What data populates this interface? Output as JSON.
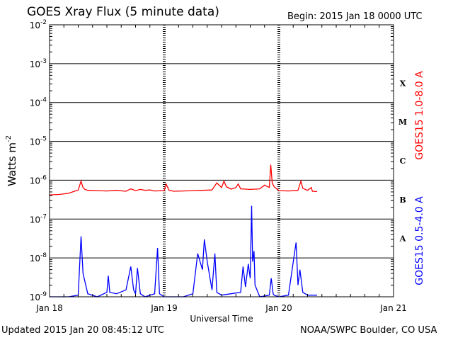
{
  "header": {
    "title": "GOES Xray Flux (5 minute data)",
    "begin": "Begin:  2015 Jan 18 0000 UTC"
  },
  "footer": {
    "updated": "Updated 2015 Jan 20 08:45:12 UTC",
    "credit": "NOAA/SWPC Boulder, CO USA"
  },
  "chart_data": {
    "type": "line",
    "title": "GOES Xray Flux (5 minute data)",
    "xlabel": "Universal Time",
    "ylabel": "Watts m",
    "ylabel_exponent": "-2",
    "yscale": "log",
    "ylim": [
      1e-09,
      0.01
    ],
    "xlim_hours": [
      0,
      72
    ],
    "x_ticks": [
      {
        "h": 0,
        "label": "Jan 18"
      },
      {
        "h": 24,
        "label": "Jan 19"
      },
      {
        "h": 48,
        "label": "Jan 20"
      },
      {
        "h": 72,
        "label": "Jan 21"
      }
    ],
    "y_ticks": [
      {
        "exp": -2,
        "label": "10",
        "sup": "-2"
      },
      {
        "exp": -3,
        "label": "10",
        "sup": "-3"
      },
      {
        "exp": -4,
        "label": "10",
        "sup": "-4"
      },
      {
        "exp": -5,
        "label": "10",
        "sup": "-5"
      },
      {
        "exp": -6,
        "label": "10",
        "sup": "-6"
      },
      {
        "exp": -7,
        "label": "10",
        "sup": "-7"
      },
      {
        "exp": -8,
        "label": "10",
        "sup": "-8"
      },
      {
        "exp": -9,
        "label": "10",
        "sup": "-9"
      }
    ],
    "flare_classes": [
      {
        "label": "X",
        "exp": -3.5
      },
      {
        "label": "M",
        "exp": -4.5
      },
      {
        "label": "C",
        "exp": -5.5
      },
      {
        "label": "B",
        "exp": -6.5
      },
      {
        "label": "A",
        "exp": -7.5
      }
    ],
    "grid": true,
    "series": [
      {
        "name": "GOES15 1.0-8.0 A",
        "color": "#ff0000",
        "x_hours": [
          0,
          2,
          4,
          5,
          6,
          6.6,
          7,
          7.4,
          8,
          10,
          12,
          14,
          16,
          17,
          18,
          19,
          20,
          21,
          22,
          24,
          24.4,
          25,
          26,
          28,
          30,
          32,
          34,
          35,
          36,
          36.5,
          37,
          38,
          39,
          39.5,
          40,
          42,
          44,
          45,
          46,
          46.3,
          46.6,
          47,
          48,
          50,
          52,
          52.6,
          53,
          54,
          54.8,
          55,
          56
        ],
        "y": [
          4.2e-07,
          4.3e-07,
          4.6e-07,
          5.1e-07,
          5.6e-07,
          9.5e-07,
          6.5e-07,
          5.8e-07,
          5.5e-07,
          5.4e-07,
          5.3e-07,
          5.5e-07,
          5.2e-07,
          6e-07,
          5.4e-07,
          5.8e-07,
          5.5e-07,
          5.6e-07,
          5.3e-07,
          5.4e-07,
          8e-07,
          5.5e-07,
          5.2e-07,
          5.3e-07,
          5.4e-07,
          5.5e-07,
          5.6e-07,
          8.5e-07,
          6.5e-07,
          9.5e-07,
          6.8e-07,
          5.9e-07,
          6.5e-07,
          8e-07,
          6e-07,
          5.8e-07,
          6e-07,
          7.5e-07,
          6.5e-07,
          2.5e-06,
          8.5e-07,
          6.8e-07,
          5.4e-07,
          5.3e-07,
          5.5e-07,
          9.5e-07,
          6.2e-07,
          5.5e-07,
          6.5e-07,
          5.2e-07,
          5.1e-07
        ]
      },
      {
        "name": "GOES15 0.5-4.0 A",
        "color": "#0000ff",
        "x_hours": [
          0,
          4,
          6,
          6.6,
          7,
          8,
          10,
          12,
          12.3,
          12.6,
          14,
          16,
          17,
          17.6,
          18,
          18.4,
          19,
          20,
          21,
          22,
          22.6,
          23,
          24,
          26,
          28,
          30,
          31,
          32,
          32.4,
          33,
          34,
          34.6,
          35,
          36,
          38,
          40,
          40.5,
          41,
          41.6,
          42,
          42.3,
          42.5,
          42.8,
          43,
          44,
          46,
          46.4,
          46.8,
          47,
          48,
          50,
          51.6,
          52,
          52.4,
          53,
          54,
          56
        ],
        "y": [
          1e-09,
          1e-09,
          1.1e-09,
          3.6e-08,
          4e-09,
          1.2e-09,
          1e-09,
          1.3e-09,
          3.5e-09,
          1.3e-09,
          1.2e-09,
          1.5e-09,
          6e-09,
          1.5e-09,
          1.2e-09,
          5.5e-09,
          1.2e-09,
          1e-09,
          1.1e-09,
          1.2e-09,
          1.8e-08,
          1.2e-09,
          1e-09,
          1e-09,
          1e-09,
          1.2e-09,
          1.3e-08,
          5e-09,
          3e-08,
          8e-09,
          1.5e-09,
          1.3e-08,
          1.3e-09,
          1.1e-09,
          1.2e-09,
          1.3e-09,
          6e-09,
          1.8e-09,
          7e-09,
          3e-09,
          2.2e-07,
          8e-09,
          1.5e-08,
          2e-09,
          1e-09,
          1.1e-09,
          3e-09,
          1.2e-09,
          1.1e-09,
          1e-09,
          1.1e-09,
          2.5e-08,
          2e-09,
          5e-09,
          1.3e-09,
          1.1e-09,
          1.1e-09
        ]
      }
    ]
  }
}
